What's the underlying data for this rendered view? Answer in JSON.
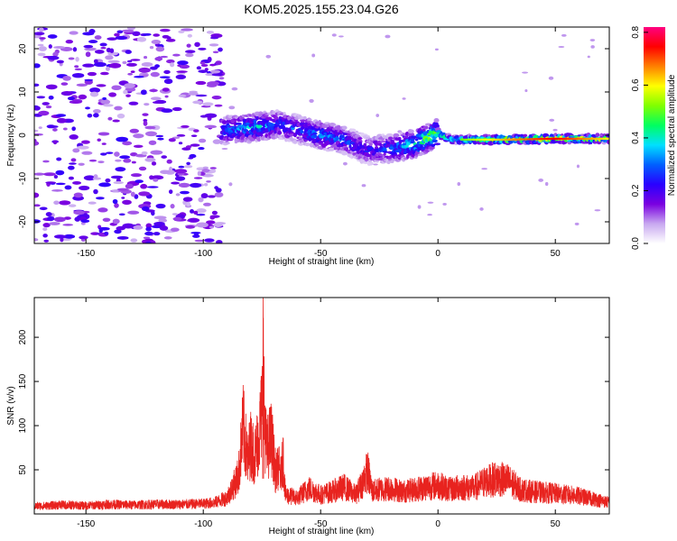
{
  "title": "KOM5.2025.155.23.04.G26",
  "colorbar": {
    "label": "Normalized spectral amplitude",
    "range": [
      0,
      0.82
    ],
    "ticks": [
      0.0,
      0.2,
      0.4,
      0.6,
      0.8
    ],
    "tick_labels": [
      "0.0",
      "0.2",
      "0.4",
      "0.6",
      "0.8"
    ],
    "colors": [
      "#ffffff",
      "#c8a8f0",
      "#7a00e0",
      "#2a00ff",
      "#0060ff",
      "#00e0ff",
      "#00ff60",
      "#80ff00",
      "#ffff00",
      "#ff8000",
      "#ff0000",
      "#ff0080"
    ]
  },
  "chart_data": [
    {
      "type": "heatmap",
      "xlabel": "Height of straight line (km)",
      "ylabel": "Frequency (Hz)",
      "xlim": [
        -172,
        73
      ],
      "ylim": [
        -25,
        25
      ],
      "xticks": [
        -150,
        -100,
        -50,
        0,
        50
      ],
      "xtick_labels": [
        "-150",
        "-100",
        "-50",
        "0",
        "50"
      ],
      "yticks": [
        -20,
        -10,
        0,
        10,
        20
      ],
      "ytick_labels": [
        "-20",
        "-10",
        "0",
        "10",
        "20"
      ],
      "ridge": {
        "description_points_x": [
          -92,
          -85,
          -75,
          -68,
          -60,
          -50,
          -40,
          -30,
          -20,
          -10,
          0,
          5,
          15,
          30,
          50,
          73
        ],
        "frequency": [
          1.0,
          1.5,
          2.0,
          2.5,
          1.5,
          0.0,
          -1.0,
          -3.5,
          -3.0,
          -2.0,
          0.5,
          -1.0,
          -1.0,
          -1.0,
          -0.8,
          -0.8
        ],
        "amplitude": [
          0.3,
          0.35,
          0.4,
          0.3,
          0.3,
          0.35,
          0.3,
          0.25,
          0.3,
          0.45,
          0.6,
          0.45,
          0.55,
          0.65,
          0.75,
          0.6
        ]
      }
    },
    {
      "type": "line",
      "xlabel": "Height of straight line (km)",
      "ylabel": "SNR (v/v)",
      "xlim": [
        -172,
        73
      ],
      "ylim": [
        0,
        245
      ],
      "xticks": [
        -150,
        -100,
        -50,
        0,
        50
      ],
      "xtick_labels": [
        "-150",
        "-100",
        "-50",
        "0",
        "50"
      ],
      "yticks": [
        50,
        100,
        150,
        200
      ],
      "ytick_labels": [
        "50",
        "100",
        "150",
        "200"
      ],
      "color": "#e8231f",
      "series": [
        {
          "x": [
            -172,
            -160,
            -150,
            -140,
            -130,
            -120,
            -110,
            -100,
            -95,
            -90,
            -87,
            -85,
            -83,
            -81,
            -80,
            -78,
            -76,
            -75,
            -74.5,
            -74,
            -73,
            -71,
            -70,
            -69,
            -68,
            -67,
            -66,
            -65,
            -60,
            -55,
            -50,
            -45,
            -40,
            -35,
            -32,
            -30,
            -28,
            -25,
            -20,
            -15,
            -10,
            -5,
            0,
            5,
            10,
            15,
            20,
            25,
            30,
            35,
            40,
            50,
            60,
            73
          ],
          "values": [
            12,
            14,
            13,
            15,
            14,
            15,
            15,
            16,
            18,
            25,
            45,
            60,
            137,
            80,
            110,
            90,
            130,
            160,
            245,
            150,
            100,
            120,
            90,
            60,
            75,
            60,
            90,
            30,
            25,
            40,
            30,
            35,
            42,
            30,
            50,
            68,
            35,
            38,
            40,
            35,
            38,
            42,
            45,
            38,
            42,
            40,
            50,
            55,
            52,
            38,
            35,
            32,
            28,
            18
          ]
        }
      ]
    }
  ]
}
